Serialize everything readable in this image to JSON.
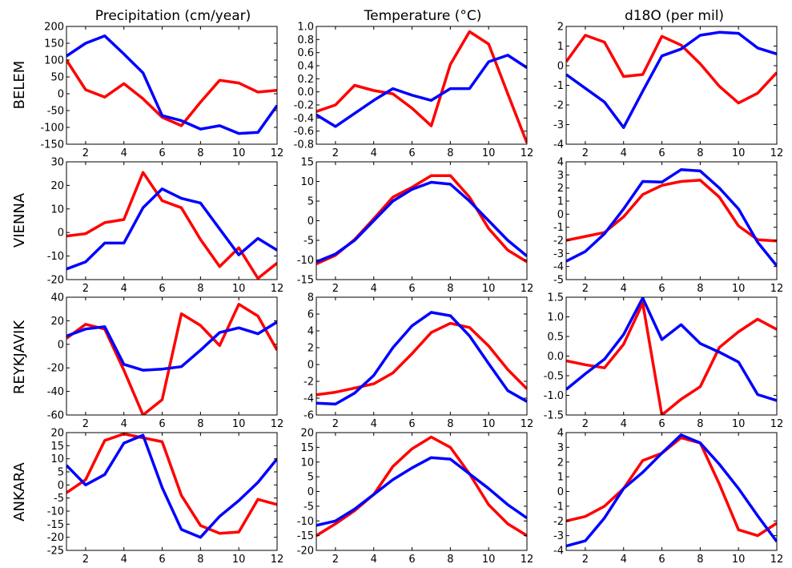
{
  "figure": {
    "column_titles": [
      "Precipitation (cm/year)",
      "Temperature (°C)",
      "d18O (per mil)"
    ],
    "row_labels": [
      "BELEM",
      "VIENNA",
      "REYKJAVIK",
      "ANKARA"
    ]
  },
  "colors": {
    "red": "#ff0000",
    "blue": "#0000ff"
  },
  "chart_data": [
    {
      "type": "line",
      "row": "BELEM",
      "column": "Precipitation (cm/year)",
      "x": [
        1,
        2,
        3,
        4,
        5,
        6,
        7,
        8,
        9,
        10,
        11,
        12
      ],
      "xlim": [
        1,
        12
      ],
      "xticks": [
        2,
        4,
        6,
        8,
        10,
        12
      ],
      "ylim": [
        -150,
        200
      ],
      "yticks": [
        -150,
        -100,
        -50,
        0,
        50,
        100,
        150,
        200
      ],
      "series": [
        {
          "color": "#ff0000",
          "values": [
            100,
            12,
            -10,
            30,
            -15,
            -70,
            -95,
            -25,
            40,
            32,
            5,
            10
          ]
        },
        {
          "color": "#0000ff",
          "values": [
            112,
            150,
            172,
            118,
            62,
            -65,
            -80,
            -105,
            -95,
            -118,
            -115,
            -35
          ]
        }
      ]
    },
    {
      "type": "line",
      "row": "BELEM",
      "column": "Temperature (°C)",
      "x": [
        1,
        2,
        3,
        4,
        5,
        6,
        7,
        8,
        9,
        10,
        11,
        12
      ],
      "xlim": [
        1,
        12
      ],
      "xticks": [
        2,
        4,
        6,
        8,
        10,
        12
      ],
      "ylim": [
        -0.8,
        1.0
      ],
      "yticks": [
        -0.8,
        -0.6,
        -0.4,
        -0.2,
        0.0,
        0.2,
        0.4,
        0.6,
        0.8,
        1.0
      ],
      "series": [
        {
          "color": "#ff0000",
          "values": [
            -0.3,
            -0.2,
            0.1,
            0.02,
            -0.03,
            -0.25,
            -0.52,
            0.42,
            0.92,
            0.73,
            -0.03,
            -0.78
          ]
        },
        {
          "color": "#0000ff",
          "values": [
            -0.35,
            -0.53,
            -0.33,
            -0.13,
            0.05,
            -0.05,
            -0.13,
            0.05,
            0.05,
            0.46,
            0.56,
            0.37
          ]
        }
      ]
    },
    {
      "type": "line",
      "row": "BELEM",
      "column": "d18O (per mil)",
      "x": [
        1,
        2,
        3,
        4,
        5,
        6,
        7,
        8,
        9,
        10,
        11,
        12
      ],
      "xlim": [
        1,
        12
      ],
      "xticks": [
        2,
        4,
        6,
        8,
        10,
        12
      ],
      "ylim": [
        -4,
        2
      ],
      "yticks": [
        -4,
        -3,
        -2,
        -1,
        0,
        1,
        2
      ],
      "series": [
        {
          "color": "#ff0000",
          "values": [
            0.2,
            1.55,
            1.2,
            -0.55,
            -0.45,
            1.5,
            1.05,
            0.1,
            -1.05,
            -1.9,
            -1.4,
            -0.35
          ]
        },
        {
          "color": "#0000ff",
          "values": [
            -0.45,
            -1.15,
            -1.85,
            -3.15,
            -1.3,
            0.5,
            0.85,
            1.55,
            1.7,
            1.65,
            0.9,
            0.6
          ]
        }
      ]
    },
    {
      "type": "line",
      "row": "VIENNA",
      "column": "Precipitation (cm/year)",
      "x": [
        1,
        2,
        3,
        4,
        5,
        6,
        7,
        8,
        9,
        10,
        11,
        12
      ],
      "xlim": [
        1,
        12
      ],
      "xticks": [
        2,
        4,
        6,
        8,
        10,
        12
      ],
      "ylim": [
        -20,
        30
      ],
      "yticks": [
        -20,
        -10,
        0,
        10,
        20,
        30
      ],
      "series": [
        {
          "color": "#ff0000",
          "values": [
            -1.5,
            -0.5,
            4.2,
            5.5,
            25.5,
            13.5,
            10.5,
            -3,
            -14.5,
            -6.5,
            -19.5,
            -13
          ]
        },
        {
          "color": "#0000ff",
          "values": [
            -15.5,
            -12.5,
            -4.5,
            -4.5,
            10.5,
            18.5,
            14.5,
            12.5,
            1.5,
            -9.5,
            -2.5,
            -7.5
          ]
        }
      ]
    },
    {
      "type": "line",
      "row": "VIENNA",
      "column": "Temperature (°C)",
      "x": [
        1,
        2,
        3,
        4,
        5,
        6,
        7,
        8,
        9,
        10,
        11,
        12
      ],
      "xlim": [
        1,
        12
      ],
      "xticks": [
        2,
        4,
        6,
        8,
        10,
        12
      ],
      "ylim": [
        -15,
        15
      ],
      "yticks": [
        -15,
        -10,
        -5,
        0,
        5,
        10,
        15
      ],
      "series": [
        {
          "color": "#ff0000",
          "values": [
            -11,
            -8.8,
            -4.8,
            0.5,
            6,
            8.5,
            11.5,
            11.5,
            6,
            -2,
            -7.5,
            -10.5
          ]
        },
        {
          "color": "#0000ff",
          "values": [
            -10.5,
            -8.5,
            -5,
            0,
            5,
            8,
            9.8,
            9.3,
            5,
            0,
            -5,
            -9
          ]
        }
      ]
    },
    {
      "type": "line",
      "row": "VIENNA",
      "column": "d18O (per mil)",
      "x": [
        1,
        2,
        3,
        4,
        5,
        6,
        7,
        8,
        9,
        10,
        11,
        12
      ],
      "xlim": [
        1,
        12
      ],
      "xticks": [
        2,
        4,
        6,
        8,
        10,
        12
      ],
      "ylim": [
        -5,
        4
      ],
      "yticks": [
        -5,
        -4,
        -3,
        -2,
        -1,
        0,
        1,
        2,
        3,
        4
      ],
      "series": [
        {
          "color": "#ff0000",
          "values": [
            -2,
            -1.7,
            -1.4,
            -0.2,
            1.5,
            2.2,
            2.5,
            2.6,
            1.3,
            -0.9,
            -1.95,
            -2.05
          ]
        },
        {
          "color": "#0000ff",
          "values": [
            -3.6,
            -2.85,
            -1.5,
            0.4,
            2.5,
            2.45,
            3.4,
            3.3,
            2,
            0.4,
            -2.15,
            -3.95
          ]
        }
      ]
    },
    {
      "type": "line",
      "row": "REYKJAVIK",
      "column": "Precipitation (cm/year)",
      "x": [
        1,
        2,
        3,
        4,
        5,
        6,
        7,
        8,
        9,
        10,
        11,
        12
      ],
      "xlim": [
        1,
        12
      ],
      "xticks": [
        2,
        4,
        6,
        8,
        10,
        12
      ],
      "ylim": [
        -60,
        40
      ],
      "yticks": [
        -60,
        -40,
        -20,
        0,
        20,
        40
      ],
      "series": [
        {
          "color": "#ff0000",
          "values": [
            5,
            17,
            13,
            -22,
            -60,
            -47,
            26,
            16,
            -1,
            34,
            24,
            -5
          ]
        },
        {
          "color": "#0000ff",
          "values": [
            7,
            13,
            15,
            -17,
            -22,
            -21,
            -19,
            -5,
            10,
            14,
            9,
            19
          ]
        }
      ]
    },
    {
      "type": "line",
      "row": "REYKJAVIK",
      "column": "Temperature (°C)",
      "x": [
        1,
        2,
        3,
        4,
        5,
        6,
        7,
        8,
        9,
        10,
        11,
        12
      ],
      "xlim": [
        1,
        12
      ],
      "xticks": [
        2,
        4,
        6,
        8,
        10,
        12
      ],
      "ylim": [
        -6,
        8
      ],
      "yticks": [
        -6,
        -4,
        -2,
        0,
        2,
        4,
        6,
        8
      ],
      "series": [
        {
          "color": "#ff0000",
          "values": [
            -3.6,
            -3.3,
            -2.8,
            -2.3,
            -1,
            1.3,
            3.8,
            4.9,
            4.4,
            2.2,
            -0.6,
            -2.9
          ]
        },
        {
          "color": "#0000ff",
          "values": [
            -4.6,
            -4.7,
            -3.4,
            -1.3,
            2,
            4.6,
            6.2,
            5.8,
            3.4,
            0.1,
            -3.1,
            -4.4
          ]
        }
      ]
    },
    {
      "type": "line",
      "row": "REYKJAVIK",
      "column": "d18O (per mil)",
      "x": [
        1,
        2,
        3,
        4,
        5,
        6,
        7,
        8,
        9,
        10,
        11,
        12
      ],
      "xlim": [
        1,
        12
      ],
      "xticks": [
        2,
        4,
        6,
        8,
        10,
        12
      ],
      "ylim": [
        -1.5,
        1.5
      ],
      "yticks": [
        -1.5,
        -1.0,
        -0.5,
        0.0,
        0.5,
        1.0,
        1.5
      ],
      "series": [
        {
          "color": "#ff0000",
          "values": [
            -0.12,
            -0.22,
            -0.3,
            0.3,
            1.35,
            -1.5,
            -1.1,
            -0.78,
            0.22,
            0.62,
            0.94,
            0.68
          ]
        },
        {
          "color": "#0000ff",
          "values": [
            -0.85,
            -0.45,
            -0.08,
            0.55,
            1.48,
            0.42,
            0.8,
            0.32,
            0.1,
            -0.15,
            -0.98,
            -1.13
          ]
        }
      ]
    },
    {
      "type": "line",
      "row": "ANKARA",
      "column": "Precipitation (cm/year)",
      "x": [
        1,
        2,
        3,
        4,
        5,
        6,
        7,
        8,
        9,
        10,
        11,
        12
      ],
      "xlim": [
        1,
        12
      ],
      "xticks": [
        2,
        4,
        6,
        8,
        10,
        12
      ],
      "ylim": [
        -25,
        20
      ],
      "yticks": [
        -25,
        -20,
        -15,
        -10,
        -5,
        0,
        5,
        10,
        15,
        20
      ],
      "series": [
        {
          "color": "#ff0000",
          "values": [
            -3,
            2,
            17,
            19.5,
            18,
            16.5,
            -4,
            -15.5,
            -18.5,
            -18,
            -5.5,
            -7.5
          ]
        },
        {
          "color": "#0000ff",
          "values": [
            7.5,
            0,
            4,
            16,
            19,
            -1,
            -17,
            -20,
            -12,
            -6,
            1,
            10
          ]
        }
      ]
    },
    {
      "type": "line",
      "row": "ANKARA",
      "column": "Temperature (°C)",
      "x": [
        1,
        2,
        3,
        4,
        5,
        6,
        7,
        8,
        9,
        10,
        11,
        12
      ],
      "xlim": [
        1,
        12
      ],
      "xticks": [
        2,
        4,
        6,
        8,
        10,
        12
      ],
      "ylim": [
        -20,
        20
      ],
      "yticks": [
        -20,
        -15,
        -10,
        -5,
        0,
        5,
        10,
        15,
        20
      ],
      "series": [
        {
          "color": "#ff0000",
          "values": [
            -15,
            -11,
            -6.5,
            -1,
            8.5,
            14.5,
            18.5,
            15,
            6,
            -4.5,
            -11,
            -15
          ]
        },
        {
          "color": "#0000ff",
          "values": [
            -11.5,
            -10,
            -6,
            -1,
            4,
            8,
            11.5,
            11,
            6,
            1,
            -4.5,
            -9
          ]
        }
      ]
    },
    {
      "type": "line",
      "row": "ANKARA",
      "column": "d18O (per mil)",
      "x": [
        1,
        2,
        3,
        4,
        5,
        6,
        7,
        8,
        9,
        10,
        11,
        12
      ],
      "xlim": [
        1,
        12
      ],
      "xticks": [
        2,
        4,
        6,
        8,
        10,
        12
      ],
      "ylim": [
        -4,
        4
      ],
      "yticks": [
        -4,
        -3,
        -2,
        -1,
        0,
        1,
        2,
        3,
        4
      ],
      "series": [
        {
          "color": "#ff0000",
          "values": [
            -2,
            -1.7,
            -1,
            0.2,
            2.1,
            2.6,
            3.65,
            3.3,
            0.5,
            -2.6,
            -3,
            -2.15
          ]
        },
        {
          "color": "#0000ff",
          "values": [
            -3.7,
            -3.35,
            -1.8,
            0.2,
            1.3,
            2.6,
            3.85,
            3.3,
            1.85,
            0.2,
            -1.65,
            -3.4
          ]
        }
      ]
    }
  ]
}
